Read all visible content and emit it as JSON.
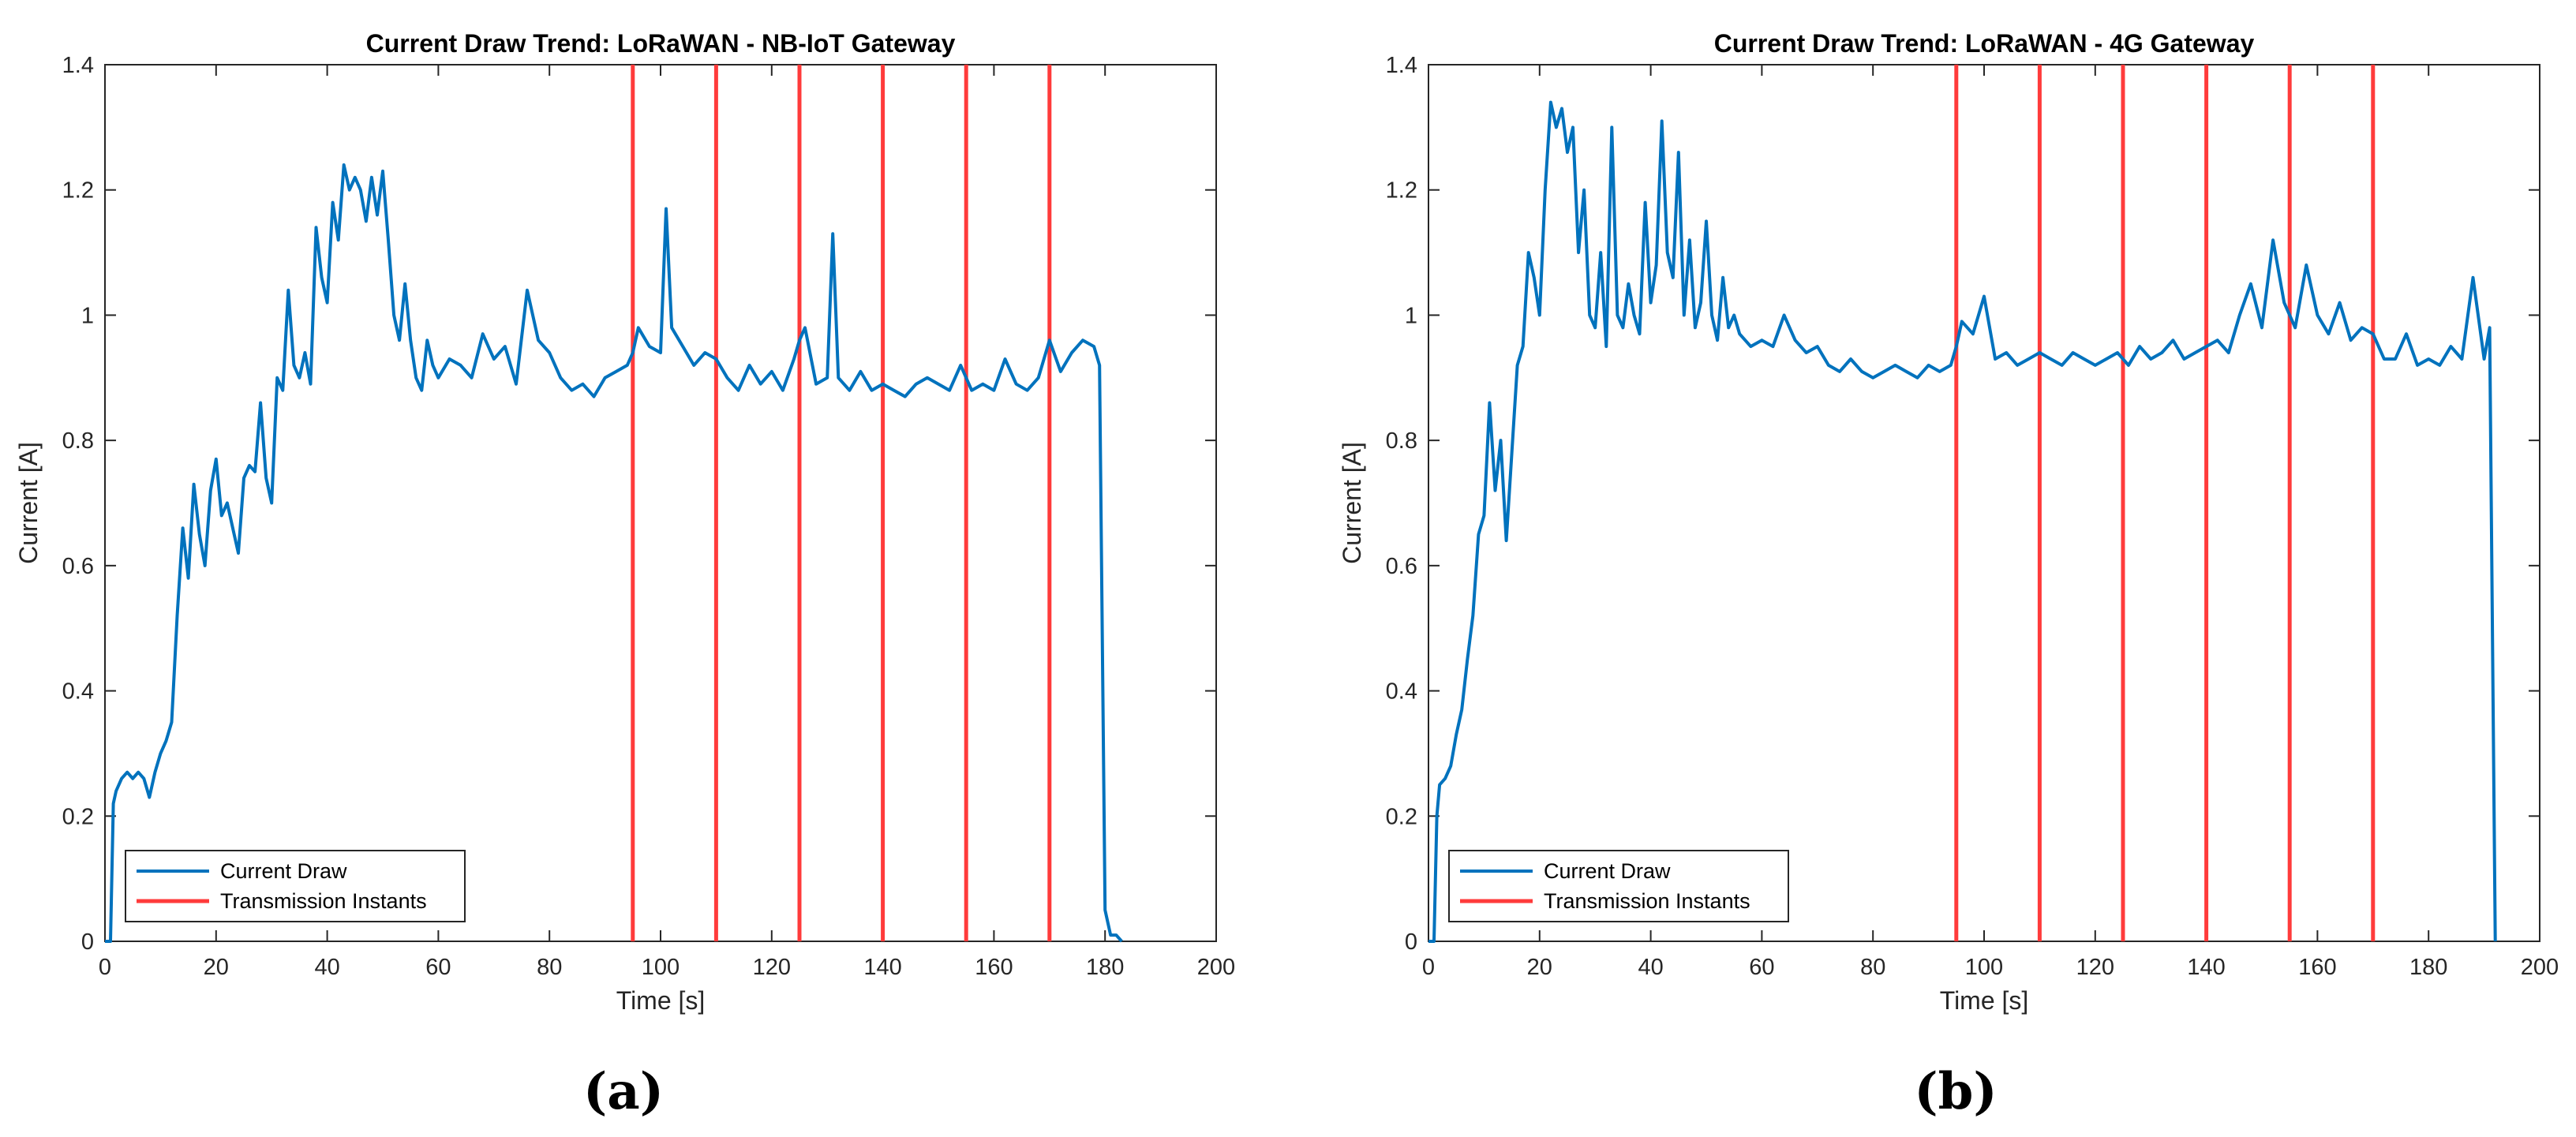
{
  "chart_data": [
    {
      "type": "line",
      "title": "Current Draw Trend: LoRaWAN - NB-IoT Gateway",
      "xlabel": "Time [s]",
      "ylabel": "Current [A]",
      "xlim": [
        0,
        200
      ],
      "ylim": [
        0,
        1.4
      ],
      "xticks": [
        0,
        20,
        40,
        60,
        80,
        100,
        120,
        140,
        160,
        180,
        200
      ],
      "yticks": [
        0,
        0.2,
        0.4,
        0.6,
        0.8,
        1,
        1.2,
        1.4
      ],
      "ytick_labels": [
        "0",
        "0.2",
        "0.4",
        "0.6",
        "0.8",
        "1",
        "1.2",
        "1.4"
      ],
      "grid": false,
      "legend_position": "bottom-left",
      "caption": "(a)",
      "series": [
        {
          "name": "Current Draw",
          "color": "#0072BD",
          "x": [
            0,
            1,
            1.5,
            2,
            3,
            4,
            5,
            6,
            7,
            8,
            9,
            10,
            11,
            12,
            13,
            14,
            15,
            16,
            17,
            18,
            19,
            20,
            21,
            22,
            23,
            24,
            25,
            26,
            27,
            28,
            29,
            30,
            31,
            32,
            33,
            34,
            35,
            36,
            37,
            38,
            39,
            40,
            41,
            42,
            43,
            44,
            45,
            46,
            47,
            48,
            49,
            50,
            51,
            52,
            53,
            54,
            55,
            56,
            57,
            58,
            59,
            60,
            62,
            64,
            66,
            68,
            70,
            72,
            74,
            76,
            78,
            80,
            82,
            84,
            86,
            88,
            90,
            92,
            94,
            95,
            96,
            98,
            100,
            101,
            102,
            104,
            106,
            108,
            110,
            112,
            114,
            116,
            118,
            120,
            122,
            124,
            125,
            126,
            128,
            130,
            131,
            132,
            134,
            136,
            138,
            140,
            142,
            144,
            146,
            148,
            150,
            152,
            154,
            156,
            158,
            160,
            162,
            164,
            166,
            168,
            170,
            172,
            174,
            176,
            178,
            179,
            180,
            181,
            182,
            183
          ],
          "y": [
            0,
            0,
            0.22,
            0.24,
            0.26,
            0.27,
            0.26,
            0.27,
            0.26,
            0.23,
            0.27,
            0.3,
            0.32,
            0.35,
            0.52,
            0.66,
            0.58,
            0.73,
            0.65,
            0.6,
            0.72,
            0.77,
            0.68,
            0.7,
            0.66,
            0.62,
            0.74,
            0.76,
            0.75,
            0.86,
            0.74,
            0.7,
            0.9,
            0.88,
            1.04,
            0.92,
            0.9,
            0.94,
            0.89,
            1.14,
            1.06,
            1.02,
            1.18,
            1.12,
            1.24,
            1.2,
            1.22,
            1.2,
            1.15,
            1.22,
            1.16,
            1.23,
            1.12,
            1.0,
            0.96,
            1.05,
            0.96,
            0.9,
            0.88,
            0.96,
            0.92,
            0.9,
            0.93,
            0.92,
            0.9,
            0.97,
            0.93,
            0.95,
            0.89,
            1.04,
            0.96,
            0.94,
            0.9,
            0.88,
            0.89,
            0.87,
            0.9,
            0.91,
            0.92,
            0.94,
            0.98,
            0.95,
            0.94,
            1.17,
            0.98,
            0.95,
            0.92,
            0.94,
            0.93,
            0.9,
            0.88,
            0.92,
            0.89,
            0.91,
            0.88,
            0.93,
            0.96,
            0.98,
            0.89,
            0.9,
            1.13,
            0.9,
            0.88,
            0.91,
            0.88,
            0.89,
            0.88,
            0.87,
            0.89,
            0.9,
            0.89,
            0.88,
            0.92,
            0.88,
            0.89,
            0.88,
            0.93,
            0.89,
            0.88,
            0.9,
            0.96,
            0.91,
            0.94,
            0.96,
            0.95,
            0.92,
            0.05,
            0.01,
            0.01,
            0
          ]
        },
        {
          "name": "Transmission Instants",
          "color": "#FF3B3B",
          "x_lines": [
            95,
            110,
            125,
            140,
            155,
            170
          ]
        }
      ]
    },
    {
      "type": "line",
      "title": "Current Draw Trend: LoRaWAN - 4G Gateway",
      "xlabel": "Time [s]",
      "ylabel": "Current [A]",
      "xlim": [
        0,
        200
      ],
      "ylim": [
        0,
        1.4
      ],
      "xticks": [
        0,
        20,
        40,
        60,
        80,
        100,
        120,
        140,
        160,
        180,
        200
      ],
      "yticks": [
        0,
        0.2,
        0.4,
        0.6,
        0.8,
        1,
        1.2,
        1.4
      ],
      "ytick_labels": [
        "0",
        "0.2",
        "0.4",
        "0.6",
        "0.8",
        "1",
        "1.2",
        "1.4"
      ],
      "grid": false,
      "legend_position": "bottom-left",
      "caption": "(b)",
      "series": [
        {
          "name": "Current Draw",
          "color": "#0072BD",
          "x": [
            0,
            1,
            1.5,
            2,
            3,
            4,
            5,
            6,
            7,
            8,
            9,
            10,
            11,
            12,
            13,
            14,
            15,
            16,
            17,
            18,
            19,
            20,
            21,
            22,
            23,
            24,
            25,
            26,
            27,
            28,
            29,
            30,
            31,
            32,
            33,
            34,
            35,
            36,
            37,
            38,
            39,
            40,
            41,
            42,
            43,
            44,
            45,
            46,
            47,
            48,
            49,
            50,
            51,
            52,
            53,
            54,
            55,
            56,
            57,
            58,
            60,
            62,
            64,
            66,
            68,
            70,
            72,
            74,
            76,
            78,
            80,
            82,
            84,
            86,
            88,
            90,
            92,
            94,
            95,
            96,
            98,
            100,
            102,
            104,
            106,
            108,
            110,
            112,
            114,
            116,
            118,
            120,
            122,
            124,
            126,
            128,
            130,
            132,
            134,
            136,
            138,
            140,
            142,
            144,
            146,
            148,
            150,
            152,
            154,
            156,
            158,
            160,
            162,
            164,
            166,
            168,
            170,
            172,
            174,
            176,
            178,
            180,
            182,
            184,
            186,
            188,
            190,
            191,
            192
          ],
          "y": [
            0,
            0,
            0.2,
            0.25,
            0.26,
            0.28,
            0.33,
            0.37,
            0.45,
            0.52,
            0.65,
            0.68,
            0.86,
            0.72,
            0.8,
            0.64,
            0.78,
            0.92,
            0.95,
            1.1,
            1.06,
            1.0,
            1.2,
            1.34,
            1.3,
            1.33,
            1.26,
            1.3,
            1.1,
            1.2,
            1.0,
            0.98,
            1.1,
            0.95,
            1.3,
            1.0,
            0.98,
            1.05,
            1.0,
            0.97,
            1.18,
            1.02,
            1.08,
            1.31,
            1.1,
            1.06,
            1.26,
            1.0,
            1.12,
            0.98,
            1.02,
            1.15,
            1.0,
            0.96,
            1.06,
            0.98,
            1.0,
            0.97,
            0.96,
            0.95,
            0.96,
            0.95,
            1.0,
            0.96,
            0.94,
            0.95,
            0.92,
            0.91,
            0.93,
            0.91,
            0.9,
            0.91,
            0.92,
            0.91,
            0.9,
            0.92,
            0.91,
            0.92,
            0.95,
            0.99,
            0.97,
            1.03,
            0.93,
            0.94,
            0.92,
            0.93,
            0.94,
            0.93,
            0.92,
            0.94,
            0.93,
            0.92,
            0.93,
            0.94,
            0.92,
            0.95,
            0.93,
            0.94,
            0.96,
            0.93,
            0.94,
            0.95,
            0.96,
            0.94,
            1.0,
            1.05,
            0.98,
            1.12,
            1.02,
            0.98,
            1.08,
            1.0,
            0.97,
            1.02,
            0.96,
            0.98,
            0.97,
            0.93,
            0.93,
            0.97,
            0.92,
            0.93,
            0.92,
            0.95,
            0.93,
            1.06,
            0.93,
            0.98,
            0
          ]
        },
        {
          "name": "Transmission Instants",
          "color": "#FF3B3B",
          "x_lines": [
            95,
            110,
            125,
            140,
            155,
            170
          ]
        }
      ]
    }
  ]
}
